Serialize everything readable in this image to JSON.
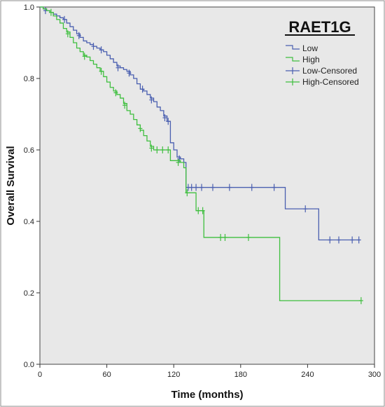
{
  "chart_data": {
    "type": "line",
    "subtype": "kaplan-meier",
    "title": "RAET1G",
    "xlabel": "Time (months)",
    "ylabel": "Overall Survival",
    "xlim": [
      0,
      300
    ],
    "ylim": [
      0,
      1.0
    ],
    "x_ticks": [
      "0",
      "60",
      "120",
      "180",
      "240",
      "300"
    ],
    "y_ticks": [
      "0.0",
      "0.2",
      "0.4",
      "0.6",
      "0.8",
      "1.0"
    ],
    "grid": false,
    "legend_position": "top-right",
    "legend": [
      "Low",
      "High",
      "Low-Censored",
      "High-Censored"
    ],
    "colors": {
      "Low": "#4a5fb0",
      "High": "#3fbf3f",
      "background": "#e8e8e8"
    },
    "series": [
      {
        "name": "Low",
        "steps": [
          [
            0,
            1.0
          ],
          [
            3,
            0.995
          ],
          [
            6,
            0.99
          ],
          [
            9,
            0.985
          ],
          [
            12,
            0.98
          ],
          [
            15,
            0.975
          ],
          [
            18,
            0.97
          ],
          [
            21,
            0.965
          ],
          [
            24,
            0.955
          ],
          [
            27,
            0.945
          ],
          [
            30,
            0.935
          ],
          [
            33,
            0.925
          ],
          [
            36,
            0.915
          ],
          [
            39,
            0.905
          ],
          [
            42,
            0.9
          ],
          [
            45,
            0.895
          ],
          [
            48,
            0.89
          ],
          [
            51,
            0.885
          ],
          [
            54,
            0.88
          ],
          [
            57,
            0.875
          ],
          [
            60,
            0.865
          ],
          [
            63,
            0.855
          ],
          [
            66,
            0.845
          ],
          [
            69,
            0.835
          ],
          [
            72,
            0.83
          ],
          [
            75,
            0.825
          ],
          [
            78,
            0.82
          ],
          [
            81,
            0.81
          ],
          [
            84,
            0.8
          ],
          [
            87,
            0.785
          ],
          [
            90,
            0.77
          ],
          [
            93,
            0.765
          ],
          [
            96,
            0.755
          ],
          [
            99,
            0.745
          ],
          [
            102,
            0.735
          ],
          [
            105,
            0.72
          ],
          [
            108,
            0.71
          ],
          [
            111,
            0.695
          ],
          [
            114,
            0.68
          ],
          [
            117,
            0.62
          ],
          [
            120,
            0.6
          ],
          [
            123,
            0.58
          ],
          [
            126,
            0.575
          ],
          [
            129,
            0.565
          ],
          [
            131,
            0.495
          ],
          [
            220,
            0.435
          ],
          [
            250,
            0.348
          ],
          [
            287,
            0.348
          ]
        ],
        "censored": [
          [
            5,
            0.99
          ],
          [
            22,
            0.965
          ],
          [
            35,
            0.92
          ],
          [
            48,
            0.89
          ],
          [
            55,
            0.88
          ],
          [
            70,
            0.83
          ],
          [
            80,
            0.815
          ],
          [
            92,
            0.77
          ],
          [
            100,
            0.74
          ],
          [
            112,
            0.69
          ],
          [
            115,
            0.68
          ],
          [
            125,
            0.575
          ],
          [
            133,
            0.495
          ],
          [
            136,
            0.495
          ],
          [
            140,
            0.495
          ],
          [
            145,
            0.495
          ],
          [
            155,
            0.495
          ],
          [
            170,
            0.495
          ],
          [
            190,
            0.495
          ],
          [
            210,
            0.495
          ],
          [
            238,
            0.435
          ],
          [
            260,
            0.348
          ],
          [
            268,
            0.348
          ],
          [
            280,
            0.348
          ],
          [
            286,
            0.348
          ]
        ]
      },
      {
        "name": "High",
        "steps": [
          [
            0,
            1.0
          ],
          [
            3,
            0.995
          ],
          [
            6,
            0.99
          ],
          [
            9,
            0.985
          ],
          [
            12,
            0.975
          ],
          [
            15,
            0.965
          ],
          [
            18,
            0.955
          ],
          [
            21,
            0.94
          ],
          [
            24,
            0.93
          ],
          [
            27,
            0.915
          ],
          [
            30,
            0.9
          ],
          [
            33,
            0.885
          ],
          [
            36,
            0.875
          ],
          [
            39,
            0.865
          ],
          [
            42,
            0.86
          ],
          [
            45,
            0.85
          ],
          [
            48,
            0.84
          ],
          [
            51,
            0.83
          ],
          [
            54,
            0.82
          ],
          [
            57,
            0.805
          ],
          [
            60,
            0.79
          ],
          [
            63,
            0.775
          ],
          [
            66,
            0.765
          ],
          [
            69,
            0.755
          ],
          [
            72,
            0.745
          ],
          [
            75,
            0.73
          ],
          [
            78,
            0.71
          ],
          [
            81,
            0.7
          ],
          [
            84,
            0.685
          ],
          [
            87,
            0.67
          ],
          [
            90,
            0.655
          ],
          [
            93,
            0.64
          ],
          [
            96,
            0.625
          ],
          [
            99,
            0.61
          ],
          [
            102,
            0.6
          ],
          [
            117,
            0.57
          ],
          [
            126,
            0.565
          ],
          [
            129,
            0.55
          ],
          [
            131,
            0.48
          ],
          [
            140,
            0.43
          ],
          [
            147,
            0.355
          ],
          [
            215,
            0.178
          ],
          [
            288,
            0.178
          ]
        ],
        "censored": [
          [
            10,
            0.985
          ],
          [
            25,
            0.925
          ],
          [
            40,
            0.862
          ],
          [
            55,
            0.82
          ],
          [
            68,
            0.76
          ],
          [
            76,
            0.725
          ],
          [
            90,
            0.66
          ],
          [
            100,
            0.605
          ],
          [
            105,
            0.6
          ],
          [
            110,
            0.6
          ],
          [
            115,
            0.6
          ],
          [
            124,
            0.565
          ],
          [
            132,
            0.48
          ],
          [
            142,
            0.43
          ],
          [
            146,
            0.43
          ],
          [
            162,
            0.355
          ],
          [
            166,
            0.355
          ],
          [
            187,
            0.355
          ],
          [
            288,
            0.178
          ]
        ]
      }
    ]
  }
}
